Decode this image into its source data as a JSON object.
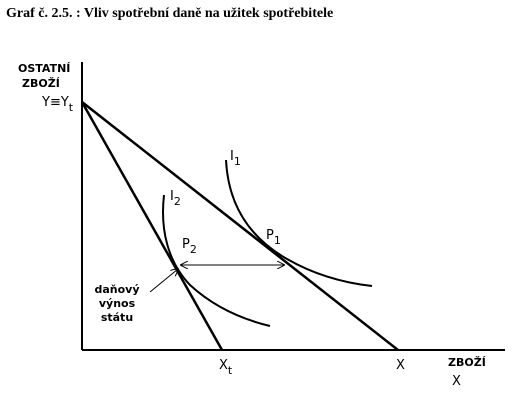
{
  "title": "Graf č. 2.5. : Vliv spotřební daně na užitek spotřebitele",
  "y_axis_label": [
    "OSTATNÍ",
    "ZBOŽÍ"
  ],
  "x_axis_label": [
    "ZBOŽÍ",
    "X"
  ],
  "labels": {
    "y_intercept": {
      "main": "Y≡Y",
      "sub": "t"
    },
    "i1": {
      "main": "I",
      "sub": "1"
    },
    "i2": {
      "main": "I",
      "sub": "2"
    },
    "p1": {
      "main": "P",
      "sub": "1"
    },
    "p2": {
      "main": "P",
      "sub": "2"
    },
    "xt": {
      "main": "X",
      "sub": "t"
    },
    "x": "X"
  },
  "tax_note": [
    "daňový",
    "výnos",
    "státu"
  ]
}
